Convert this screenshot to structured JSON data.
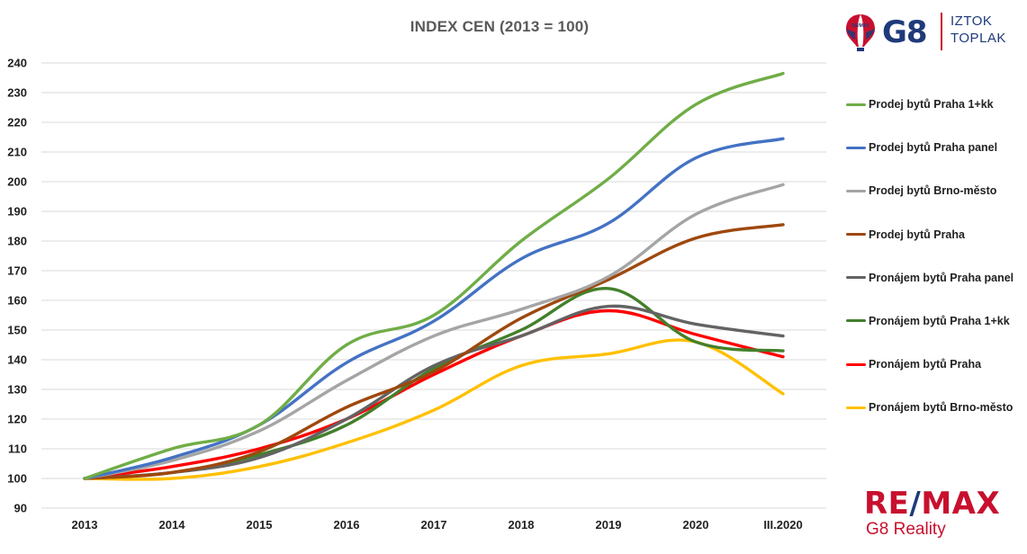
{
  "logo": {
    "balloon_text": "RE/MAX",
    "g8": "G8",
    "name_line1": "IZTOK",
    "name_line2": "TOPLAK"
  },
  "brand": {
    "remax_part1": "RE",
    "remax_slash": "/",
    "remax_part2": "MAX",
    "subtitle": "G8 Reality"
  },
  "chart_data": {
    "type": "line",
    "title": "INDEX CEN (2013 = 100)",
    "xlabel": "",
    "ylabel": "",
    "categories": [
      "2013",
      "2014",
      "2015",
      "2016",
      "2017",
      "2018",
      "2019",
      "2020",
      "III.2020"
    ],
    "ylim": [
      90,
      240
    ],
    "yticks": [
      90,
      100,
      110,
      120,
      130,
      140,
      150,
      160,
      170,
      180,
      190,
      200,
      210,
      220,
      230,
      240
    ],
    "grid": true,
    "legend_position": "right",
    "series": [
      {
        "name": "Prodej bytů Praha 1+kk",
        "color": "#70ad47",
        "values": [
          100,
          110,
          118,
          145,
          155,
          180,
          201,
          226,
          236.5
        ]
      },
      {
        "name": "Prodej bytů Praha panel",
        "color": "#4472c4",
        "values": [
          100,
          107,
          118,
          139,
          153,
          174,
          186,
          208,
          214.5
        ]
      },
      {
        "name": "Prodej bytů Brno-město",
        "color": "#a5a5a5",
        "values": [
          100,
          106,
          116,
          133,
          148,
          157,
          168,
          189,
          199
        ]
      },
      {
        "name": "Prodej bytů Praha",
        "color": "#9e480e",
        "values": [
          100,
          102,
          109,
          124,
          136,
          154,
          167,
          181,
          185.5
        ]
      },
      {
        "name": "Pronájem bytů Praha panel",
        "color": "#636363",
        "values": [
          100,
          102,
          107,
          120,
          138,
          148,
          158,
          152,
          148
        ]
      },
      {
        "name": "Pronájem bytů Praha 1+kk",
        "color": "#43802b",
        "values": [
          100,
          102,
          108,
          118,
          137,
          150,
          164,
          146,
          143
        ]
      },
      {
        "name": "Pronájem bytů Praha",
        "color": "#ff0000",
        "values": [
          100,
          104,
          110,
          120,
          135,
          148,
          156.5,
          148.5,
          141
        ]
      },
      {
        "name": "Pronájem bytů Brno-město",
        "color": "#ffc000",
        "values": [
          100,
          100,
          104,
          112,
          123,
          138,
          142,
          146,
          128.5
        ]
      }
    ]
  }
}
